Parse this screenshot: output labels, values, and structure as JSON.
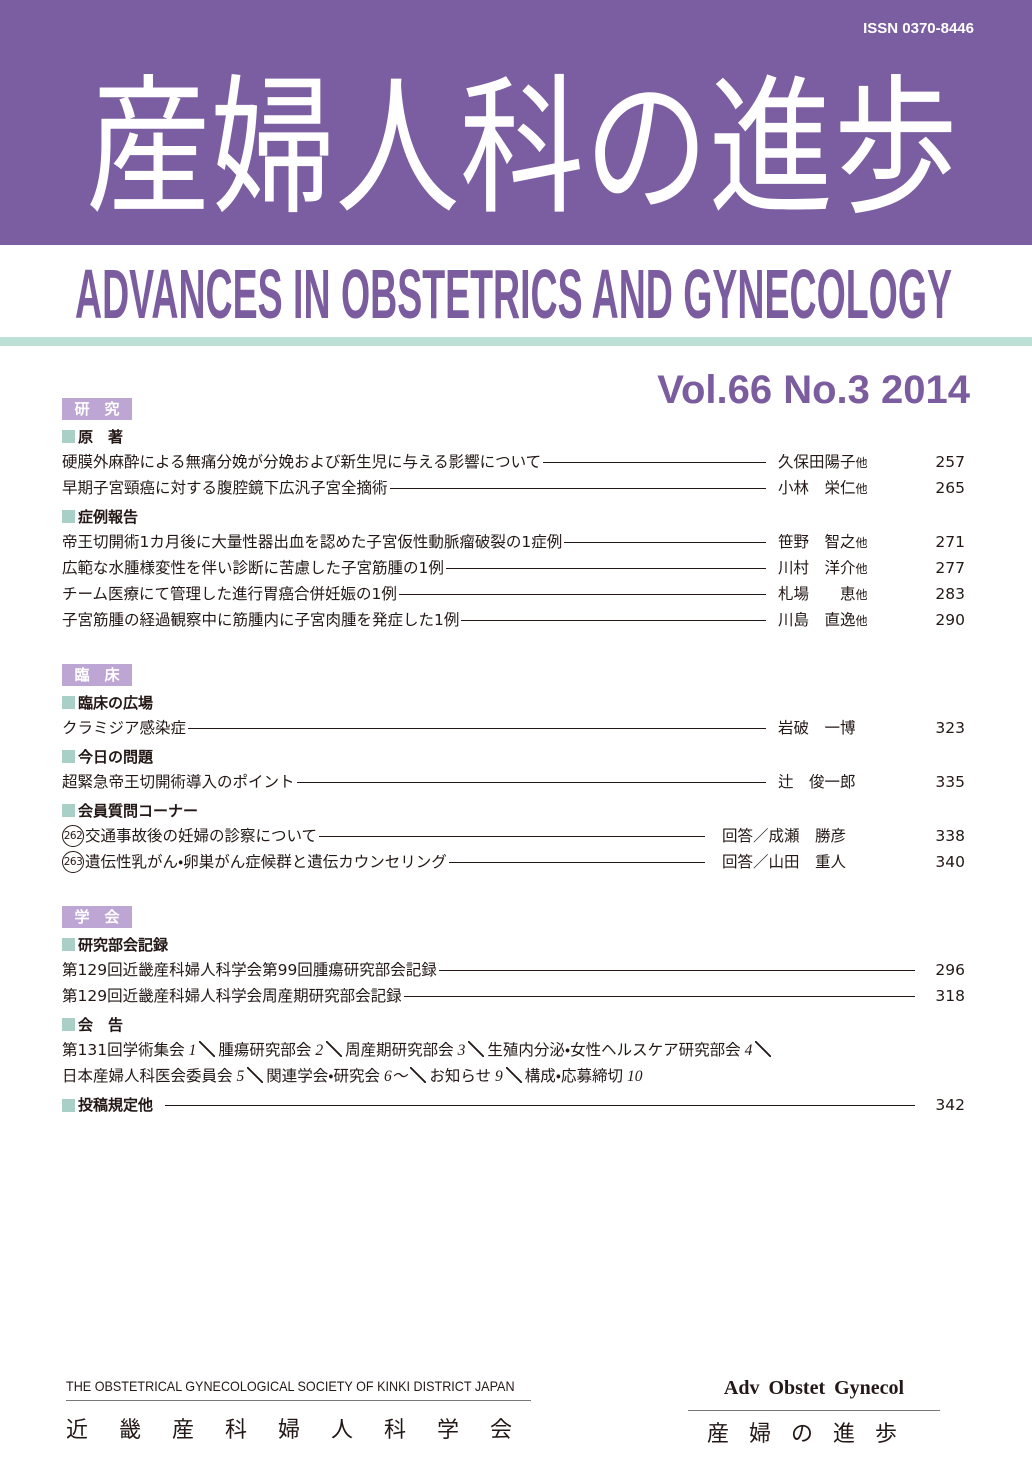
{
  "header": {
    "issn": "ISSN 0370-8446",
    "title_ja": "産婦人科の進歩",
    "title_en": "ADVANCES IN OBSTETRICS AND GYNECOLOGY",
    "volume": "Vol.66 No.3 2014"
  },
  "sections": [
    {
      "label": "研　究",
      "groups": [
        {
          "label": "原　著",
          "items": [
            {
              "title": "硬膜外麻酔による無痛分娩が分娩および新生児に与える影響について",
              "author": "久保田陽子",
              "suffix": "他",
              "page": 257
            },
            {
              "title": "早期子宮頸癌に対する腹腔鏡下広汎子宮全摘術",
              "author": "小林　栄仁",
              "suffix": "他",
              "page": 265
            }
          ]
        },
        {
          "label": "症例報告",
          "items": [
            {
              "title": "帝王切開術1カ月後に大量性器出血を認めた子宮仮性動脈瘤破裂の1症例",
              "author": "笹野　智之",
              "suffix": "他",
              "page": 271
            },
            {
              "title": "広範な水腫様変性を伴い診断に苦慮した子宮筋腫の1例",
              "author": "川村　洋介",
              "suffix": "他",
              "page": 277
            },
            {
              "title": "チーム医療にて管理した進行胃癌合併妊娠の1例",
              "author": "札場　　恵",
              "suffix": "他",
              "page": 283
            },
            {
              "title": "子宮筋腫の経過観察中に筋腫内に子宮肉腫を発症した1例",
              "author": "川島　直逸",
              "suffix": "他",
              "page": 290
            }
          ]
        }
      ]
    },
    {
      "label": "臨　床",
      "groups": [
        {
          "label": "臨床の広場",
          "items": [
            {
              "title": "クラミジア感染症",
              "author": "岩破　一博",
              "page": 323
            }
          ]
        },
        {
          "label": "今日の問題",
          "items": [
            {
              "title": "超緊急帝王切開術導入のポイント",
              "author": "辻　俊一郎",
              "page": 335
            }
          ]
        },
        {
          "label": "会員質問コーナー",
          "items": [
            {
              "number": "262",
              "title": "交通事故後の妊婦の診察について",
              "author": "回答／成瀬　勝彦",
              "page": 338
            },
            {
              "number": "263",
              "title": "遺伝性乳がん・卵巣がん症候群と遺伝カウンセリング",
              "author": "回答／山田　重人",
              "page": 340
            }
          ]
        }
      ]
    },
    {
      "label": "学　会",
      "groups": [
        {
          "label": "研究部会記録",
          "items": [
            {
              "title": "第129回近畿産科婦人科学会第99回腫瘍研究部会記録",
              "page": 296
            },
            {
              "title": "第129回近畿産科婦人科学会周産期研究部会記録",
              "page": 318
            }
          ]
        },
        {
          "label": "会　告",
          "notices": [
            [
              {
                "name": "第131回学術集会",
                "page": "1"
              },
              {
                "name": "腫瘍研究部会",
                "page": "2"
              },
              {
                "name": "周産期研究部会",
                "page": "3"
              },
              {
                "name": "生殖内分泌・女性ヘルスケア研究部会",
                "page": "4"
              }
            ],
            [
              {
                "name": "日本産婦人科医会委員会",
                "page": "5"
              },
              {
                "name": "関連学会・研究会",
                "page": "6〜"
              },
              {
                "name": "お知らせ",
                "page": "9"
              },
              {
                "name": "構成・応募締切",
                "page": "10"
              }
            ]
          ]
        },
        {
          "label": "投稿規定他",
          "page": 342
        }
      ]
    }
  ],
  "footer": {
    "society_en": "THE OBSTETRICAL GYNECOLOGICAL SOCIETY OF KINKI DISTRICT JAPAN",
    "society_ja": "近畿産科婦人科学会",
    "abbrev": "Adv Obstet Gynecol",
    "short_ja": "産婦の進歩"
  }
}
